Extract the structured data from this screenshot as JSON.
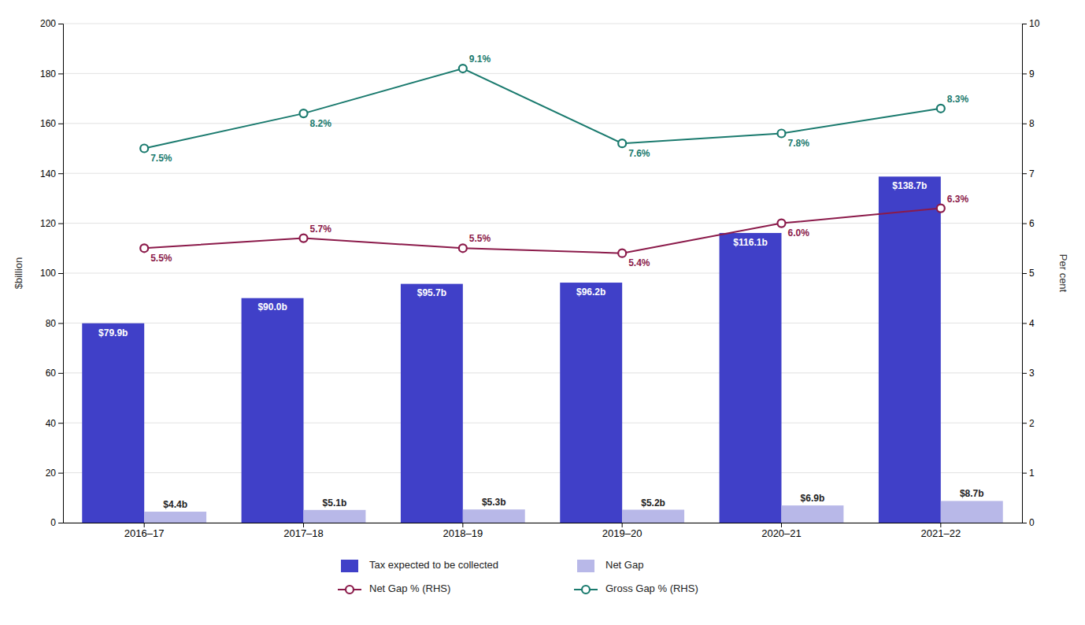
{
  "chart_data": {
    "type": "bar",
    "categories": [
      "2016–17",
      "2017–18",
      "2018–19",
      "2019–20",
      "2020–21",
      "2021–22"
    ],
    "ylabel": "$billion",
    "y2label": "Per cent",
    "ylim": [
      0,
      200
    ],
    "yticks": [
      0,
      20,
      40,
      60,
      80,
      100,
      120,
      140,
      160,
      180,
      200
    ],
    "y2lim": [
      0,
      10
    ],
    "y2ticks": [
      0,
      1,
      2,
      3,
      4,
      5,
      6,
      7,
      8,
      9,
      10
    ],
    "grid": true,
    "legend": "bottom",
    "data_labels": true,
    "series": [
      {
        "name": "Tax expected to be collected",
        "type": "bar",
        "color": "#4040c8",
        "values": [
          79.9,
          90.0,
          95.7,
          96.2,
          116.1,
          138.7
        ],
        "value_labels": [
          "$79.9b",
          "$90.0b",
          "$95.7b",
          "$96.2b",
          "$116.1b",
          "$138.7b"
        ]
      },
      {
        "name": "Net Gap",
        "type": "bar",
        "color": "#b8b8e8",
        "values": [
          4.4,
          5.1,
          5.3,
          5.2,
          6.9,
          8.7
        ],
        "value_labels": [
          "$4.4b",
          "$5.1b",
          "$5.3b",
          "$5.2b",
          "$6.9b",
          "$8.7b"
        ]
      },
      {
        "name": "Net Gap % (RHS)",
        "type": "line",
        "axis": "y2",
        "color": "#8b1a4a",
        "marker": "circle",
        "values": [
          5.5,
          5.7,
          5.5,
          5.4,
          6.0,
          6.3
        ],
        "value_labels": [
          "5.5%",
          "5.7%",
          "5.5%",
          "5.4%",
          "6.0%",
          "6.3%"
        ]
      },
      {
        "name": "Gross Gap % (RHS)",
        "type": "line",
        "axis": "y2",
        "color": "#1a7a6e",
        "marker": "circle",
        "values": [
          7.5,
          8.2,
          9.1,
          7.6,
          7.8,
          8.3
        ],
        "value_labels": [
          "7.5%",
          "8.2%",
          "9.1%",
          "7.6%",
          "7.8%",
          "8.3%"
        ]
      }
    ]
  }
}
